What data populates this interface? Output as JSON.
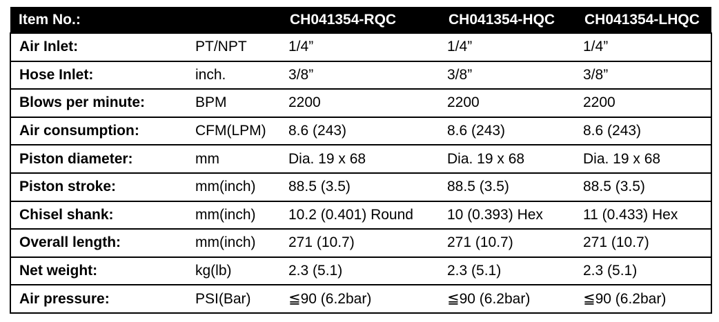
{
  "header": {
    "item_label": "Item No.:",
    "unit_label": "",
    "models": [
      "CH041354-RQC",
      "CH041354-HQC",
      "CH041354-LHQC"
    ]
  },
  "rows": [
    {
      "label": "Air Inlet:",
      "unit": "PT/NPT",
      "values": [
        "1/4”",
        "1/4”",
        "1/4”"
      ]
    },
    {
      "label": "Hose Inlet:",
      "unit": "inch.",
      "values": [
        "3/8”",
        "3/8”",
        "3/8”"
      ]
    },
    {
      "label": "Blows per minute:",
      "unit": "BPM",
      "values": [
        "2200",
        "2200",
        "2200"
      ]
    },
    {
      "label": "Air consumption:",
      "unit": "CFM(LPM)",
      "values": [
        "8.6 (243)",
        "8.6 (243)",
        "8.6 (243)"
      ]
    },
    {
      "label": "Piston diameter:",
      "unit": "mm",
      "values": [
        "Dia. 19 x 68",
        "Dia. 19 x 68",
        "Dia. 19 x 68"
      ]
    },
    {
      "label": "Piston stroke:",
      "unit": "mm(inch)",
      "values": [
        "88.5 (3.5)",
        "88.5 (3.5)",
        "88.5 (3.5)"
      ]
    },
    {
      "label": "Chisel shank:",
      "unit": "mm(inch)",
      "values": [
        "10.2 (0.401) Round",
        "10 (0.393) Hex",
        "11 (0.433) Hex"
      ]
    },
    {
      "label": "Overall length:",
      "unit": "mm(inch)",
      "values": [
        "271 (10.7)",
        "271 (10.7)",
        "271 (10.7)"
      ]
    },
    {
      "label": "Net weight:",
      "unit": "kg(lb)",
      "values": [
        "2.3 (5.1)",
        "2.3 (5.1)",
        "2.3 (5.1)"
      ]
    },
    {
      "label": "Air pressure:",
      "unit": "PSI(Bar)",
      "values": [
        "≦90 (6.2bar)",
        "≦90 (6.2bar)",
        "≦90 (6.2bar)"
      ]
    }
  ]
}
